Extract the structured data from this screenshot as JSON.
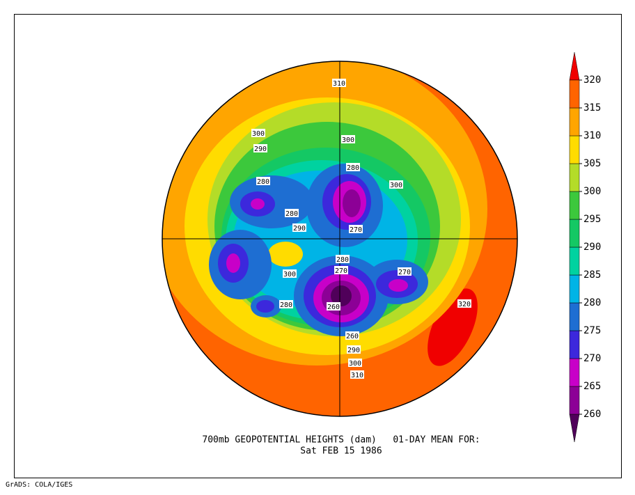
{
  "title": "700mb GEOPOTENTIAL HEIGHTS (dam)   01-DAY MEAN FOR:",
  "subtitle": "Sat FEB 15 1986",
  "colorbar": {
    "levels": [
      260,
      265,
      270,
      275,
      280,
      285,
      290,
      295,
      300,
      305,
      310,
      315,
      320
    ],
    "colors": [
      "#50005a",
      "#8c0096",
      "#c800c8",
      "#3c28dc",
      "#1e6ed2",
      "#00b4e6",
      "#00d2a0",
      "#14c864",
      "#3cc83c",
      "#b4dc28",
      "#ffdc00",
      "#ffa500",
      "#ff6400",
      "#f00000"
    ]
  },
  "contour_labels": [
    310,
    300,
    290,
    300,
    280,
    280,
    300,
    280,
    290,
    270,
    280,
    270,
    300,
    270,
    280,
    260,
    320,
    260,
    290,
    300,
    310
  ],
  "footer": "GrADS: COLA/IGES"
}
